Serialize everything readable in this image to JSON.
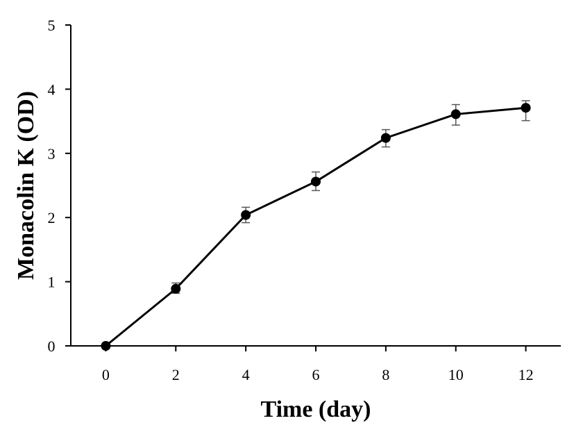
{
  "chart_data": {
    "type": "line",
    "xlabel": "Time (day)",
    "ylabel": "Monacolin K (OD)",
    "xlim": [
      -1,
      13
    ],
    "ylim": [
      0,
      5
    ],
    "x_ticks": [
      0,
      2,
      4,
      6,
      8,
      10,
      12
    ],
    "y_ticks": [
      0,
      1,
      2,
      3,
      4,
      5
    ],
    "grid": false,
    "series": [
      {
        "x": [
          0,
          2,
          4,
          6,
          8,
          10,
          12
        ],
        "y": [
          0,
          0.89,
          2.04,
          2.56,
          3.24,
          3.61,
          3.71
        ],
        "error_low": [
          0,
          0.07,
          0.12,
          0.14,
          0.14,
          0.17,
          0.2
        ],
        "error_high": [
          0,
          0.09,
          0.12,
          0.15,
          0.13,
          0.15,
          0.11
        ],
        "marker": "circle",
        "color": "#000000"
      }
    ]
  }
}
